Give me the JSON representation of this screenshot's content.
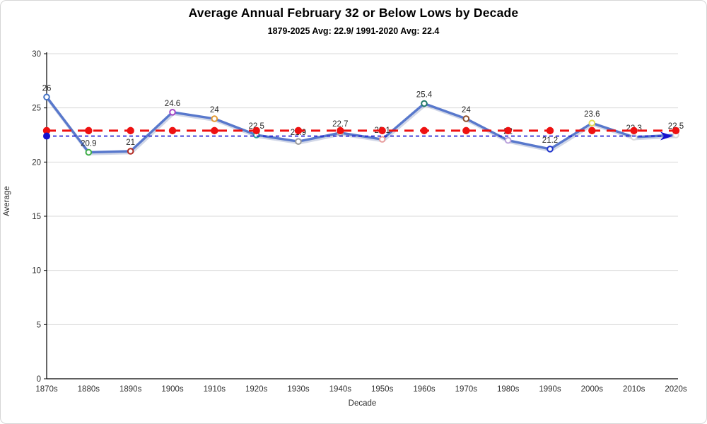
{
  "title": "Average Annual February 32 or Below Lows by Decade",
  "subtitle": "1879-2025 Avg: 22.9/ 1991-2020 Avg: 22.4",
  "chart_data": {
    "type": "line",
    "categories": [
      "1870s",
      "1880s",
      "1890s",
      "1900s",
      "1910s",
      "1920s",
      "1930s",
      "1940s",
      "1950s",
      "1960s",
      "1970s",
      "1980s",
      "1990s",
      "2000s",
      "2010s",
      "2020s"
    ],
    "values": [
      26,
      20.9,
      21,
      24.6,
      24,
      22.5,
      21.9,
      22.7,
      22.1,
      25.4,
      24,
      22,
      21.2,
      23.6,
      22.3,
      22.5
    ],
    "data_labels": [
      "26",
      "20.9",
      "21",
      "24.6",
      "24",
      "22.5",
      "21.9",
      "22.7",
      "22.1",
      "25.4",
      "24",
      "22",
      "21.2",
      "23.6",
      "22.3",
      "22.5"
    ],
    "point_colors": [
      "#4472C4",
      "#3FAE49",
      "#B22A22",
      "#A74AC7",
      "#E39A33",
      "#2EA39E",
      "#9B9B9B",
      "#ABABAB",
      "#E89B9B",
      "#1F7868",
      "#8C4F2E",
      "#B9A0DC",
      "#2236CC",
      "#E3DE56",
      "#D9D9D9",
      "#D9D9D9"
    ],
    "series_color": "#5878CC",
    "title": "Average Annual February 32 or Below Lows by Decade",
    "subtitle": "1879-2025 Avg: 22.9/ 1991-2020 Avg: 22.4",
    "xlabel": "Decade",
    "ylabel": "Average",
    "ylim": [
      0,
      30
    ],
    "ytick_step": 5,
    "ytick_labels": [
      "0",
      "5",
      "10",
      "15",
      "20",
      "25",
      "30"
    ],
    "grid": true,
    "gridline_color": "#d9d9d9",
    "axis_color": "#000000",
    "tick_label_color": "#2e2e2e",
    "data_label_color": "#2a2a2a",
    "legend_position": "none",
    "avg_lines": [
      {
        "name": "1879-2025 average",
        "value": 22.9,
        "color": "#EE1111",
        "style": "dashed",
        "markers": "dot-every-category"
      },
      {
        "name": "1991-2020 average",
        "value": 22.4,
        "color": "#1512CF",
        "style": "dashed",
        "markers": "start-dot-end-arrow"
      }
    ]
  }
}
